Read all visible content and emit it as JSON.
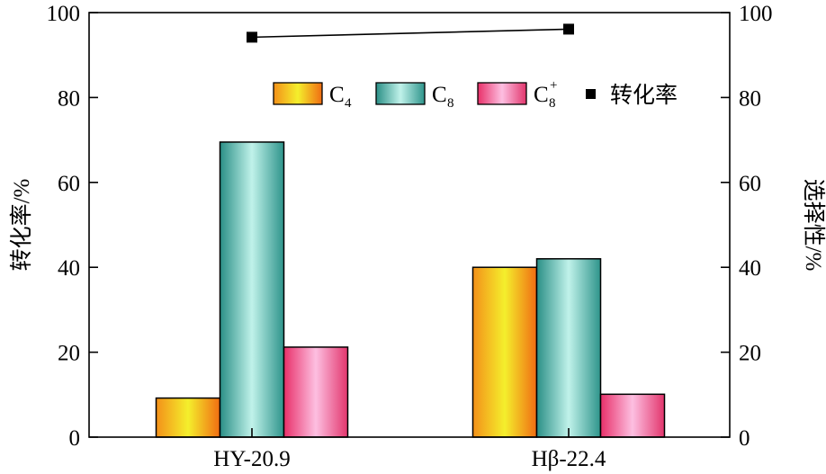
{
  "chart_data": {
    "type": "bar",
    "categories": [
      "HY-20.9",
      "Hβ-22.4"
    ],
    "series": [
      {
        "name": "C4",
        "label_base": "C",
        "label_sub": "4",
        "label_sup": "",
        "values": [
          9.2,
          40.0
        ],
        "gradient": [
          "#f39019",
          "#f4ef2c",
          "#f06c12"
        ]
      },
      {
        "name": "C8",
        "label_base": "C",
        "label_sub": "8",
        "label_sup": "",
        "values": [
          69.5,
          42.0
        ],
        "gradient": [
          "#2a8f86",
          "#c0f2ea",
          "#2e948b"
        ]
      },
      {
        "name": "C8+",
        "label_base": "C",
        "label_sub": "8",
        "label_sup": "+",
        "values": [
          21.2,
          10.1
        ],
        "gradient": [
          "#e83069",
          "#fdbfe1",
          "#e2356c"
        ]
      }
    ],
    "line_series": {
      "name": "转化率",
      "values": [
        94.2,
        96.1
      ],
      "marker": "square",
      "color": "#000000"
    },
    "ylabel_left": "转化率/%",
    "ylabel_right": "选择性/%",
    "ylim": [
      0,
      100
    ],
    "yticks": [
      0,
      20,
      40,
      60,
      80,
      100
    ],
    "legend": {
      "placement": "top-right",
      "conversion_label": "转化率"
    }
  }
}
